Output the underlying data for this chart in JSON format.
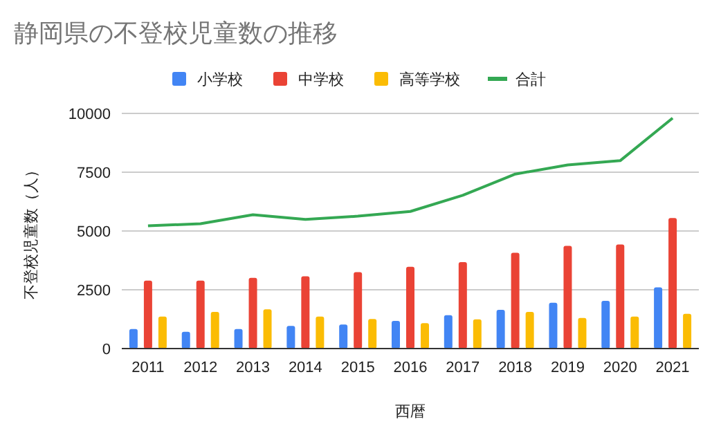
{
  "chart_data": {
    "type": "bar",
    "title": "静岡県の不登校児童数の推移",
    "xlabel": "西暦",
    "ylabel": "不登校児童数（人）",
    "categories": [
      "2011",
      "2012",
      "2013",
      "2014",
      "2015",
      "2016",
      "2017",
      "2018",
      "2019",
      "2020",
      "2021"
    ],
    "series": [
      {
        "name": "小学校",
        "color": "#4285f4",
        "values": [
          830,
          710,
          830,
          960,
          1020,
          1180,
          1420,
          1650,
          1950,
          2030,
          2600
        ]
      },
      {
        "name": "中学校",
        "color": "#ea4335",
        "values": [
          2890,
          2890,
          3010,
          3070,
          3250,
          3480,
          3680,
          4070,
          4370,
          4430,
          5550
        ]
      },
      {
        "name": "高等学校",
        "color": "#fbbc04",
        "values": [
          1360,
          1560,
          1670,
          1360,
          1260,
          1080,
          1240,
          1560,
          1300,
          1360,
          1480
        ]
      },
      {
        "name": "合計",
        "color": "#34a853",
        "type": "line",
        "values": [
          5220,
          5310,
          5690,
          5490,
          5630,
          5830,
          6520,
          7420,
          7810,
          7990,
          9800
        ]
      }
    ],
    "ylim": [
      0,
      10000
    ],
    "yticks": [
      0,
      2500,
      5000,
      7500,
      10000
    ],
    "grid": "y",
    "legend": "top"
  }
}
